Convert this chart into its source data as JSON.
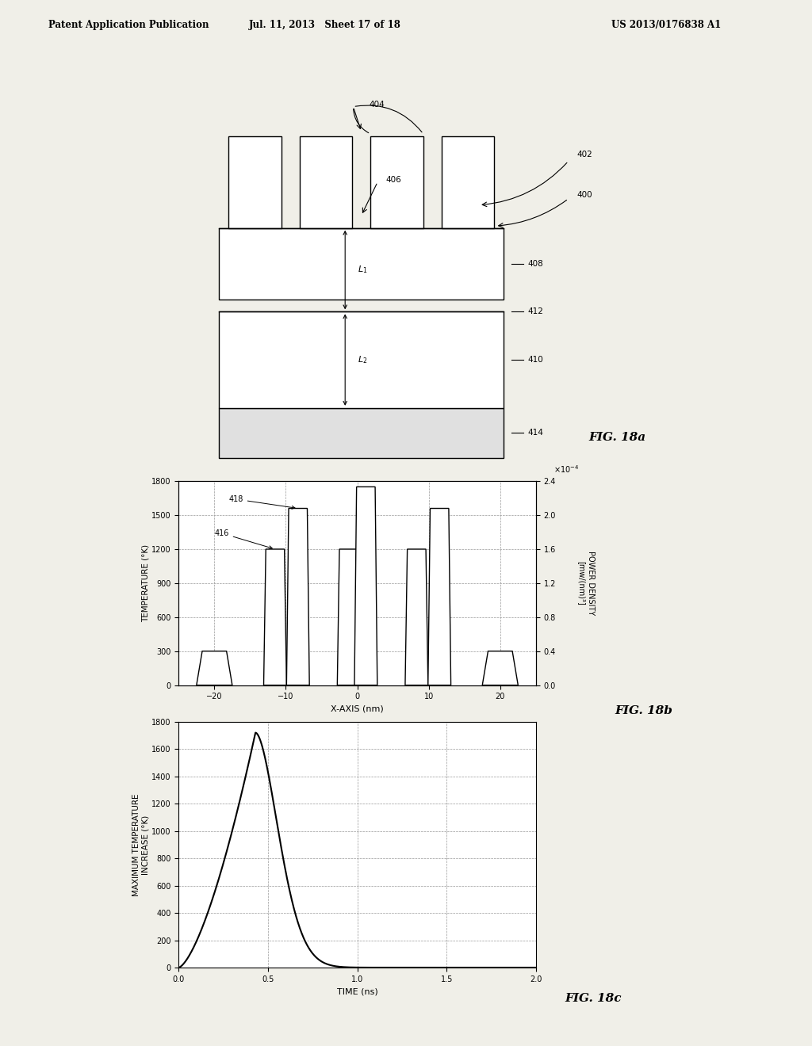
{
  "header_left": "Patent Application Publication",
  "header_mid": "Jul. 11, 2013   Sheet 17 of 18",
  "header_right": "US 2013/0176838 A1",
  "fig18b": {
    "label": "FIG. 18b",
    "xlabel": "X-AXIS (nm)",
    "ylabel_left": "TEMPERATURE (°K)",
    "ylabel_right": "POWER DENSITY\n[mw/(nm)³]",
    "xlim": [
      -25,
      25
    ],
    "ylim_left": [
      0,
      1800
    ],
    "ylim_right": [
      0,
      2.4
    ],
    "yticks_left": [
      0,
      300,
      600,
      900,
      1200,
      1500,
      1800
    ],
    "yticks_right": [
      0,
      0.4,
      0.8,
      1.2,
      1.6,
      2.0,
      2.4
    ],
    "xticks": [
      -20,
      -10,
      0,
      10,
      20
    ],
    "right_scale_label": "x10⁻⁴"
  },
  "fig18c": {
    "label": "FIG. 18c",
    "xlabel": "TIME (ns)",
    "ylabel": "MAXIMUM TEMPERATURE\nINCREASE (°K)",
    "xlim": [
      0,
      2
    ],
    "ylim": [
      0,
      1800
    ],
    "yticks": [
      0,
      200,
      400,
      600,
      800,
      1000,
      1200,
      1400,
      1600,
      1800
    ],
    "xticks": [
      0,
      0.5,
      1.0,
      1.5,
      2.0
    ]
  },
  "bg_color": "#f0efe8",
  "line_color": "#000000",
  "grid_color": "#999999"
}
